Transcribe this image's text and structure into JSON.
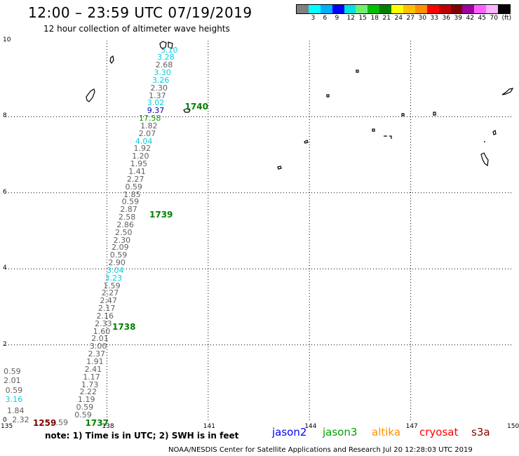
{
  "header": {
    "title": "12:00 – 23:59 UTC 07/19/2019",
    "subtitle": "12 hour collection of altimeter wave heights"
  },
  "legend": {
    "colors": [
      "#808080",
      "#00ffff",
      "#00b0ff",
      "#0000ff",
      "#00e0e0",
      "#70f070",
      "#00c000",
      "#008000",
      "#ffff00",
      "#ffc000",
      "#ff9000",
      "#ff0000",
      "#c00000",
      "#800000",
      "#a000a0",
      "#ff60ff",
      "#ffb0ff",
      "#000000"
    ],
    "labels": [
      "3",
      "6",
      "9",
      "12",
      "15",
      "18",
      "21",
      "24",
      "27",
      "30",
      "33",
      "36",
      "39",
      "42",
      "45",
      "70",
      "(ft)"
    ]
  },
  "axes": {
    "x_ticks": [
      "135",
      "138",
      "141",
      "144",
      "147",
      "150"
    ],
    "y_ticks": [
      "0",
      "2",
      "4",
      "6",
      "8",
      "10"
    ]
  },
  "observations": [
    {
      "text": "3.10",
      "color": "#00d0e0",
      "lon": 140.1,
      "lat": 9.75
    },
    {
      "text": "3.28",
      "color": "#00d0e0",
      "lon": 140.0,
      "lat": 9.55
    },
    {
      "text": "2.68",
      "color": "#606060",
      "lon": 139.95,
      "lat": 9.35
    },
    {
      "text": "3.30",
      "color": "#00d0e0",
      "lon": 139.9,
      "lat": 9.15
    },
    {
      "text": "3.26",
      "color": "#00d0e0",
      "lon": 139.85,
      "lat": 8.95
    },
    {
      "text": "2.30",
      "color": "#606060",
      "lon": 139.8,
      "lat": 8.75
    },
    {
      "text": "1.37",
      "color": "#606060",
      "lon": 139.75,
      "lat": 8.55
    },
    {
      "text": "3.02",
      "color": "#00d0e0",
      "lon": 139.7,
      "lat": 8.35
    },
    {
      "text": "9.37",
      "color": "#0000c0",
      "lon": 139.7,
      "lat": 8.15
    },
    {
      "text": "17.58",
      "color": "#00a000",
      "lon": 139.6,
      "lat": 7.95
    },
    {
      "text": "1.82",
      "color": "#606060",
      "lon": 139.5,
      "lat": 7.75
    },
    {
      "text": "2.07",
      "color": "#606060",
      "lon": 139.45,
      "lat": 7.55
    },
    {
      "text": "4.04",
      "color": "#00d0e0",
      "lon": 139.35,
      "lat": 7.35
    },
    {
      "text": "1.92",
      "color": "#606060",
      "lon": 139.3,
      "lat": 7.15
    },
    {
      "text": "1.20",
      "color": "#606060",
      "lon": 139.25,
      "lat": 6.95
    },
    {
      "text": "1.95",
      "color": "#606060",
      "lon": 139.2,
      "lat": 6.75
    },
    {
      "text": "1.41",
      "color": "#606060",
      "lon": 139.15,
      "lat": 6.55
    },
    {
      "text": "2.27",
      "color": "#606060",
      "lon": 139.1,
      "lat": 6.35
    },
    {
      "text": "0.59",
      "color": "#606060",
      "lon": 139.05,
      "lat": 6.15
    },
    {
      "text": "1.85",
      "color": "#606060",
      "lon": 139.0,
      "lat": 5.95
    },
    {
      "text": "0.59",
      "color": "#606060",
      "lon": 138.95,
      "lat": 5.75
    },
    {
      "text": "2.87",
      "color": "#606060",
      "lon": 138.9,
      "lat": 5.55
    },
    {
      "text": "2.58",
      "color": "#606060",
      "lon": 138.85,
      "lat": 5.35
    },
    {
      "text": "2.86",
      "color": "#606060",
      "lon": 138.8,
      "lat": 5.15
    },
    {
      "text": "2.50",
      "color": "#606060",
      "lon": 138.75,
      "lat": 4.95
    },
    {
      "text": "2.30",
      "color": "#606060",
      "lon": 138.7,
      "lat": 4.75
    },
    {
      "text": "2.09",
      "color": "#606060",
      "lon": 138.65,
      "lat": 4.55
    },
    {
      "text": "0.59",
      "color": "#606060",
      "lon": 138.6,
      "lat": 4.35
    },
    {
      "text": "2.90",
      "color": "#606060",
      "lon": 138.55,
      "lat": 4.15
    },
    {
      "text": "3.04",
      "color": "#00d0e0",
      "lon": 138.5,
      "lat": 3.95
    },
    {
      "text": "3.23",
      "color": "#00d0e0",
      "lon": 138.45,
      "lat": 3.75
    },
    {
      "text": "1.59",
      "color": "#606060",
      "lon": 138.4,
      "lat": 3.55
    },
    {
      "text": "2.27",
      "color": "#606060",
      "lon": 138.35,
      "lat": 3.35
    },
    {
      "text": "2.47",
      "color": "#606060",
      "lon": 138.3,
      "lat": 3.15
    },
    {
      "text": "2.17",
      "color": "#606060",
      "lon": 138.25,
      "lat": 2.95
    },
    {
      "text": "2.16",
      "color": "#606060",
      "lon": 138.2,
      "lat": 2.75
    },
    {
      "text": "2.33",
      "color": "#606060",
      "lon": 138.15,
      "lat": 2.55
    },
    {
      "text": "1.60",
      "color": "#606060",
      "lon": 138.1,
      "lat": 2.35
    },
    {
      "text": "2.01",
      "color": "#606060",
      "lon": 138.05,
      "lat": 2.15
    },
    {
      "text": "3.00",
      "color": "#606060",
      "lon": 138.0,
      "lat": 1.95
    },
    {
      "text": "2.37",
      "color": "#606060",
      "lon": 137.95,
      "lat": 1.75
    },
    {
      "text": "1.91",
      "color": "#606060",
      "lon": 137.9,
      "lat": 1.55
    },
    {
      "text": "2.41",
      "color": "#606060",
      "lon": 137.85,
      "lat": 1.35
    },
    {
      "text": "1.17",
      "color": "#606060",
      "lon": 137.8,
      "lat": 1.15
    },
    {
      "text": "1.73",
      "color": "#606060",
      "lon": 137.75,
      "lat": 0.95
    },
    {
      "text": "2.22",
      "color": "#606060",
      "lon": 137.7,
      "lat": 0.75
    },
    {
      "text": "1.19",
      "color": "#606060",
      "lon": 137.65,
      "lat": 0.55
    },
    {
      "text": "0.59",
      "color": "#606060",
      "lon": 137.6,
      "lat": 0.35
    },
    {
      "text": "0.59",
      "color": "#606060",
      "lon": 137.55,
      "lat": 0.15
    },
    {
      "text": "0.59",
      "color": "#606060",
      "lon": 136.85,
      "lat": -0.05
    },
    {
      "text": "0.59",
      "color": "#606060",
      "lon": 135.45,
      "lat": 1.3
    },
    {
      "text": "2.01",
      "color": "#606060",
      "lon": 135.45,
      "lat": 1.05
    },
    {
      "text": "0.59",
      "color": "#606060",
      "lon": 135.5,
      "lat": 0.8
    },
    {
      "text": "3.16",
      "color": "#00d0e0",
      "lon": 135.5,
      "lat": 0.55
    },
    {
      "text": "1.84",
      "color": "#606060",
      "lon": 135.55,
      "lat": 0.25
    },
    {
      "text": "2.32",
      "color": "#606060",
      "lon": 135.7,
      "lat": 0.02
    }
  ],
  "passes": [
    {
      "text": "1740",
      "color": "#008000",
      "lon": 140.6,
      "lat": 8.25
    },
    {
      "text": "1739",
      "color": "#008000",
      "lon": 139.55,
      "lat": 5.4
    },
    {
      "text": "1738",
      "color": "#008000",
      "lon": 138.45,
      "lat": 2.45
    },
    {
      "text": "1737",
      "color": "#008000",
      "lon": 137.65,
      "lat": -0.08
    },
    {
      "text": "1259",
      "color": "#800000",
      "lon": 136.1,
      "lat": -0.08
    }
  ],
  "footer": {
    "note": "note: 1) Time is in UTC; 2) SWH is in feet",
    "missions": [
      {
        "name": "jason2",
        "color": "#0000ff"
      },
      {
        "name": "jason3",
        "color": "#00a000"
      },
      {
        "name": "altika",
        "color": "#ff9000"
      },
      {
        "name": "cryosat",
        "color": "#ff0000"
      },
      {
        "name": "s3a",
        "color": "#800000"
      }
    ],
    "credit": "NOAA/NESDIS Center for Satellite Applications and Research    Jul 20 12:28:03 UTC 2019"
  }
}
